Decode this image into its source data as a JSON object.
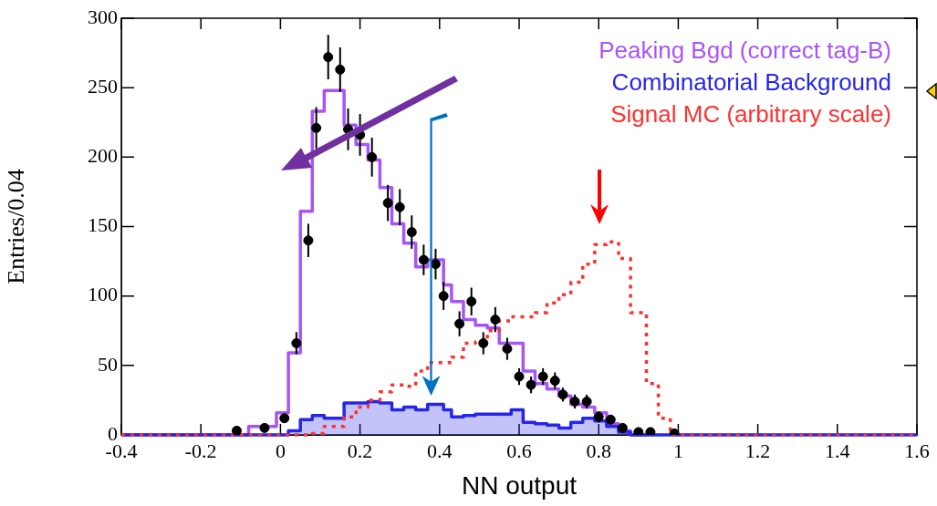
{
  "chart_data": {
    "type": "step",
    "xlabel": "NN output",
    "ylabel": "Entries/0.04",
    "xlim": [
      -0.4,
      1.6
    ],
    "xticks": [
      -0.4,
      -0.2,
      0,
      0.2,
      0.4,
      0.6,
      0.8,
      1,
      1.2,
      1.4,
      1.6
    ],
    "ylim": [
      0,
      300
    ],
    "yticks": [
      0,
      50,
      100,
      150,
      200,
      250,
      300
    ],
    "legend": "top right",
    "grid": false,
    "x": [
      -0.4,
      -0.08,
      -0.01,
      0.02,
      0.05,
      0.08,
      0.11,
      0.16,
      0.19,
      0.22,
      0.25,
      0.28,
      0.31,
      0.34,
      0.37,
      0.41,
      0.43,
      0.46,
      0.49,
      0.52,
      0.55,
      0.58,
      0.61,
      0.64,
      0.67,
      0.7,
      0.73,
      0.76,
      0.79,
      0.82,
      0.85,
      0.88,
      0.92,
      0.95,
      0.98,
      1.01,
      1.6
    ],
    "series": [
      {
        "name": "Peaking Bgd (correct tag-B)",
        "color": "#a855f7",
        "values": [
          0,
          6,
          16,
          59,
          161,
          233,
          248,
          223,
          209,
          198,
          178,
          152,
          138,
          121,
          126,
          108,
          96,
          83,
          79,
          77,
          66,
          66,
          46,
          37,
          33,
          28,
          22,
          20,
          16,
          8,
          3,
          0,
          0,
          null,
          null,
          null,
          null
        ]
      },
      {
        "name": "Combinatorial Background",
        "type": "area",
        "color": "#2626e8",
        "values": [
          0,
          0,
          0,
          3,
          11,
          14,
          12,
          23,
          23,
          24,
          23,
          18,
          20,
          18,
          22,
          18,
          13,
          14,
          15,
          15,
          15,
          18,
          9,
          8,
          7,
          5,
          9,
          12,
          10,
          6,
          2,
          0,
          0,
          0,
          0,
          0,
          0
        ]
      },
      {
        "name": "Signal MC (arbitrary scale)",
        "color": "#ff3030",
        "line_style": "dotted",
        "values": [
          0,
          0,
          0,
          0,
          0,
          1,
          6,
          13,
          20,
          25,
          31,
          36,
          35,
          46,
          52,
          52,
          56,
          66,
          67,
          75,
          82,
          85,
          85,
          88,
          95,
          101,
          110,
          123,
          137,
          139,
          127,
          88,
          37,
          12,
          0,
          0,
          0
        ]
      },
      {
        "type": "scatter",
        "color": "#000000",
        "marker": "circle",
        "x": [
          -0.11,
          -0.04,
          0.01,
          0.04,
          0.07,
          0.09,
          0.12,
          0.15,
          0.17,
          0.2,
          0.23,
          0.27,
          0.3,
          0.33,
          0.36,
          0.39,
          0.41,
          0.45,
          0.48,
          0.51,
          0.54,
          0.57,
          0.6,
          0.63,
          0.66,
          0.69,
          0.71,
          0.74,
          0.77,
          0.8,
          0.83,
          0.86,
          0.9,
          0.93,
          0.99
        ],
        "values": [
          3,
          5,
          12,
          66,
          140,
          221,
          272,
          263,
          220,
          216,
          200,
          167,
          164,
          146,
          126,
          123,
          100,
          80,
          96,
          66,
          83,
          62,
          42,
          36,
          42,
          39,
          29,
          24,
          24,
          13,
          11,
          5,
          2,
          2,
          1
        ],
        "errors": [
          2,
          2,
          3,
          8,
          12,
          15,
          16,
          16,
          15,
          15,
          14,
          13,
          13,
          12,
          11,
          11,
          10,
          9,
          10,
          8,
          9,
          8,
          6,
          6,
          6,
          6,
          5,
          5,
          5,
          4,
          3,
          2,
          1,
          1,
          1
        ]
      }
    ]
  }
}
